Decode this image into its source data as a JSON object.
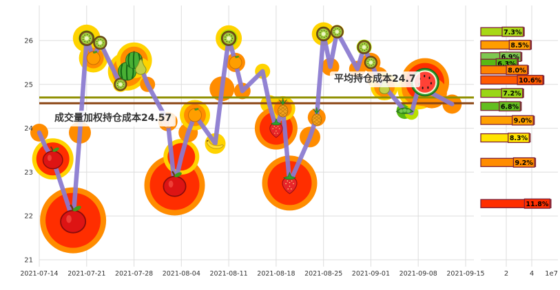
{
  "background_color": "#ffffff",
  "chart_data": [
    {
      "type": "line",
      "title": "",
      "ylim": [
        20.85,
        26.85
      ],
      "yticks": [
        21,
        22,
        23,
        24,
        25,
        26
      ],
      "xtick_labels": [
        "2021-07-14",
        "2021-07-21",
        "2021-07-28",
        "2021-08-04",
        "2021-08-11",
        "2021-08-18",
        "2021-08-25",
        "2021-09-01",
        "2021-09-08",
        "2021-09-15"
      ],
      "grid": true,
      "grid_color": "#dddddd",
      "line_color": "#8a7ad0",
      "hlines": [
        {
          "price": 24.7,
          "color": "#8f8f00",
          "label": "平均持仓成本24.7"
        },
        {
          "price": 24.57,
          "color": "#8b4513",
          "label": "成交量加权持仓成本24.57"
        }
      ],
      "points": [
        {
          "date": "2021-07-14",
          "price": 23.9,
          "blob": [
            "#ff8c00",
            13
          ]
        },
        {
          "date": "2021-07-15",
          "price": 23.55,
          "blob": [
            "#ff8c00",
            11
          ]
        },
        {
          "date": "2021-07-16",
          "price": 23.3,
          "fruit": "apple",
          "fs": 30,
          "blob": [
            "#ff2e00",
            24
          ],
          "halo": [
            "#ffd300",
            30
          ]
        },
        {
          "date": "2021-07-19",
          "price": 21.9,
          "fruit": "apple",
          "fs": 38,
          "blob": [
            "#ff2e00",
            40
          ],
          "halo": [
            "#ff8c00",
            48
          ]
        },
        {
          "date": "2021-07-20",
          "price": 23.9,
          "blob": [
            "#ff8c00",
            16
          ]
        },
        {
          "date": "2021-07-21",
          "price": 26.05,
          "fruit": "kiwi",
          "fs": 21,
          "blob": [
            "#b8e000",
            12
          ],
          "halo": [
            "#ffd300",
            20
          ]
        },
        {
          "date": "2021-07-22",
          "price": 25.6,
          "fruit": "tangerine",
          "fs": 20,
          "blob": [
            "#ff8c00",
            15
          ],
          "halo": [
            "#ffd300",
            21
          ]
        },
        {
          "date": "2021-07-23",
          "price": 25.95,
          "fruit": "kiwi",
          "fs": 19,
          "blob": [
            "#b8e000",
            10
          ]
        },
        {
          "date": "2021-07-26",
          "price": 25.0,
          "fruit": "kiwi",
          "fs": 18,
          "blob": [
            "#ffd300",
            11
          ]
        },
        {
          "date": "2021-07-27",
          "price": 25.3,
          "fruit": "watermelon",
          "fs": 26,
          "blob": [
            "#ff8c00",
            22
          ],
          "halo": [
            "#ffd300",
            28
          ]
        },
        {
          "date": "2021-07-28",
          "price": 25.55,
          "fruit": "watermelon",
          "fs": 24,
          "blob": [
            "#ff8c00",
            20
          ],
          "halo": [
            "#ffd300",
            26
          ]
        },
        {
          "date": "2021-07-29",
          "price": 25.4,
          "fruit": "pear",
          "fs": 22,
          "blob": [
            "#ffd300",
            13
          ]
        },
        {
          "date": "2021-07-30",
          "price": 25.0,
          "blob": [
            "#ff8c00",
            11
          ]
        },
        {
          "date": "2021-08-02",
          "price": 24.15,
          "fruit": "peach",
          "fs": 20,
          "blob": [
            "#ff8c00",
            14
          ]
        },
        {
          "date": "2021-08-03",
          "price": 22.7,
          "fruit": "apple",
          "fs": 34,
          "blob": [
            "#ff2e00",
            36
          ],
          "halo": [
            "#ff8c00",
            44
          ]
        },
        {
          "date": "2021-08-04",
          "price": 23.35,
          "blob": [
            "#ff2e00",
            20
          ],
          "halo": [
            "#ffd300",
            26
          ]
        },
        {
          "date": "2021-08-05",
          "price": 23.9,
          "blob": [
            "#ff8c00",
            14
          ]
        },
        {
          "date": "2021-08-06",
          "price": 24.3,
          "fruit": "tangerine",
          "fs": 20,
          "blob": [
            "#ff8c00",
            16
          ],
          "halo": [
            "#ffd300",
            22
          ]
        },
        {
          "date": "2021-08-09",
          "price": 23.65,
          "fruit": "banana",
          "fs": 24,
          "blob": [
            "#ffd300",
            15
          ]
        },
        {
          "date": "2021-08-10",
          "price": 24.9,
          "blob": [
            "#ff8c00",
            18
          ]
        },
        {
          "date": "2021-08-11",
          "price": 26.05,
          "fruit": "kiwi",
          "fs": 21,
          "blob": [
            "#b8e000",
            13
          ],
          "halo": [
            "#ffd300",
            19
          ]
        },
        {
          "date": "2021-08-12",
          "price": 25.5,
          "fruit": "tangerine",
          "fs": 19,
          "blob": [
            "#ff8c00",
            14
          ]
        },
        {
          "date": "2021-08-13",
          "price": 24.85,
          "blob": [
            "#ff8c00",
            12
          ]
        },
        {
          "date": "2021-08-16",
          "price": 25.3,
          "blob": [
            "#ffd300",
            11
          ]
        },
        {
          "date": "2021-08-17",
          "price": 24.55,
          "blob": [
            "#ffd300",
            13
          ]
        },
        {
          "date": "2021-08-18",
          "price": 24.0,
          "fruit": "strawberry",
          "fs": 27,
          "blob": [
            "#ff2e00",
            24
          ],
          "halo": [
            "#ff8c00",
            31
          ]
        },
        {
          "date": "2021-08-19",
          "price": 24.45,
          "fruit": "pineapple",
          "fs": 24,
          "blob": [
            "#ff8c00",
            13
          ],
          "halo": [
            "#ffd300",
            18
          ]
        },
        {
          "date": "2021-08-20",
          "price": 22.75,
          "fruit": "strawberry",
          "fs": 31,
          "blob": [
            "#ff2e00",
            32
          ],
          "halo": [
            "#ff8c00",
            40
          ]
        },
        {
          "date": "2021-08-23",
          "price": 23.8,
          "blob": [
            "#ff8c00",
            15
          ]
        },
        {
          "date": "2021-08-24",
          "price": 24.25,
          "fruit": "pineapple",
          "fs": 23,
          "blob": [
            "#ff8c00",
            13
          ]
        },
        {
          "date": "2021-08-25",
          "price": 26.15,
          "fruit": "kiwi",
          "fs": 20,
          "blob": [
            "#b8e000",
            11
          ],
          "halo": [
            "#ffd300",
            17
          ]
        },
        {
          "date": "2021-08-26",
          "price": 25.4,
          "blob": [
            "#ff8c00",
            13
          ]
        },
        {
          "date": "2021-08-27",
          "price": 26.2,
          "fruit": "kiwi",
          "fs": 18,
          "blob": [
            "#ffd300",
            10
          ]
        },
        {
          "date": "2021-08-30",
          "price": 25.35,
          "blob": [
            "#ff8c00",
            12
          ]
        },
        {
          "date": "2021-08-31",
          "price": 25.85,
          "fruit": "kiwi",
          "fs": 19,
          "blob": [
            "#b8e000",
            11
          ]
        },
        {
          "date": "2021-09-01",
          "price": 25.5,
          "fruit": "kiwi",
          "fs": 18,
          "blob": [
            "#ff8c00",
            14
          ]
        },
        {
          "date": "2021-09-02",
          "price": 25.15,
          "blob": [
            "#ff8c00",
            16
          ]
        },
        {
          "date": "2021-09-03",
          "price": 24.95,
          "fruit": "pear",
          "fs": 21,
          "blob": [
            "#ff8c00",
            15
          ],
          "halo": [
            "#ffd300",
            20
          ]
        },
        {
          "date": "2021-09-06",
          "price": 24.4,
          "fruit": "peas",
          "fs": 24,
          "blob": [
            "#58b814",
            12
          ]
        },
        {
          "date": "2021-09-07",
          "price": 24.35,
          "blob": [
            "#b8e000",
            10
          ]
        },
        {
          "date": "2021-09-08",
          "price": 24.9,
          "blob": [
            "#ff8c00",
            24
          ],
          "halo": [
            "#ffd300",
            30
          ]
        },
        {
          "date": "2021-09-09",
          "price": 25.05,
          "fruit": "watermelon-cut",
          "fs": 40,
          "blob": [
            "#ff2e00",
            28
          ],
          "halo": [
            "#ff8c00",
            35
          ]
        },
        {
          "date": "2021-09-10",
          "price": 24.8,
          "blob": [
            "#ff8c00",
            22
          ]
        },
        {
          "date": "2021-09-13",
          "price": 24.55,
          "blob": [
            "#ff8c00",
            14
          ]
        }
      ]
    },
    {
      "type": "bar",
      "orientation": "horizontal",
      "xticks": [
        "2",
        "4"
      ],
      "exponent_label": "1e7",
      "xlim_e7": [
        0,
        6.2
      ],
      "bar_border_color": "#7d2239",
      "label_text_color": "#000000",
      "bars": [
        {
          "price": 26.2,
          "label": "7.3%",
          "value_e7": 3.41,
          "color": "#a8d816"
        },
        {
          "price": 25.9,
          "label": "8.5%",
          "value_e7": 3.97,
          "color": "#ff9d00"
        },
        {
          "price": 25.63,
          "label": "6.9%",
          "value_e7": 3.22,
          "color": "#7ec850"
        },
        {
          "price": 25.48,
          "label": "6.3%",
          "value_e7": 2.94,
          "color": "#58b814"
        },
        {
          "price": 25.33,
          "label": "8.0%",
          "value_e7": 3.74,
          "color": "#ff8400"
        },
        {
          "price": 25.1,
          "label": "10.6%",
          "value_e7": 4.95,
          "color": "#ff5a00"
        },
        {
          "price": 24.8,
          "label": "7.2%",
          "value_e7": 3.36,
          "color": "#9ad616"
        },
        {
          "price": 24.5,
          "label": "6.8%",
          "value_e7": 3.18,
          "color": "#63be20"
        },
        {
          "price": 24.18,
          "label": "9.0%",
          "value_e7": 4.2,
          "color": "#ffa000"
        },
        {
          "price": 23.78,
          "label": "8.3%",
          "value_e7": 3.88,
          "color": "#ffe400"
        },
        {
          "price": 23.22,
          "label": "9.2%",
          "value_e7": 4.3,
          "color": "#ff8c00"
        },
        {
          "price": 22.28,
          "label": "11.8%",
          "value_e7": 5.51,
          "color": "#ff2e00"
        }
      ]
    }
  ]
}
